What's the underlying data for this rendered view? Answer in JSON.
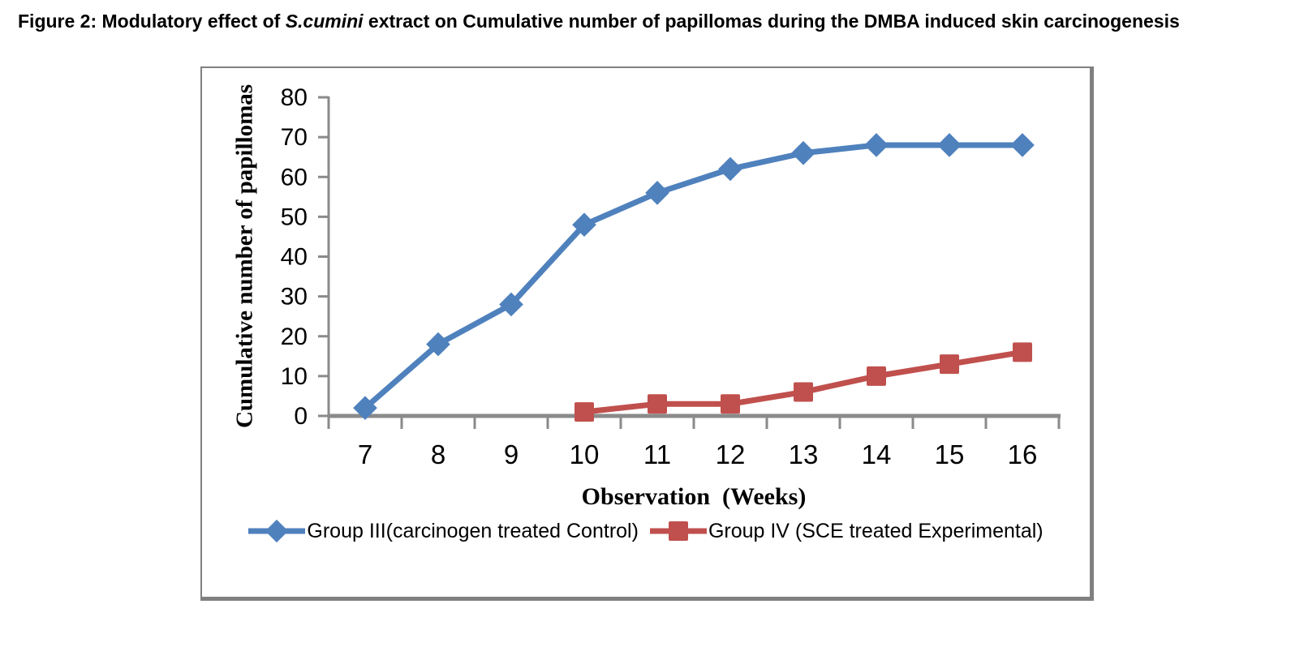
{
  "figure_title": {
    "prefix": "Figure 2: Modulatory effect of ",
    "italic": "S.cumini",
    "suffix": " extract on Cumulative number of papillomas during the DMBA induced skin carcinogenesis"
  },
  "chart_data": {
    "type": "line",
    "categories": [
      7,
      8,
      9,
      10,
      11,
      12,
      13,
      14,
      15,
      16
    ],
    "series": [
      {
        "name": "Group III(carcinogen treated Control)",
        "marker": "diamond",
        "color": "#4F81BD",
        "values": [
          2,
          18,
          28,
          48,
          56,
          62,
          66,
          68,
          68,
          68
        ]
      },
      {
        "name": "Group IV (SCE treated Experimental)",
        "marker": "square",
        "color": "#C0504D",
        "values": [
          null,
          null,
          null,
          1,
          3,
          3,
          6,
          10,
          13,
          16
        ]
      }
    ],
    "xlabel": "Observation  (Weeks)",
    "ylabel": "Cumulative number of papillomas",
    "ylim": [
      0,
      80
    ],
    "yticks": [
      0,
      10,
      20,
      30,
      40,
      50,
      60,
      70,
      80
    ],
    "grid": false,
    "legend_position": "bottom",
    "colors": {
      "axis": "#8A8A8A",
      "border": "#808080",
      "text": "#000000"
    }
  }
}
